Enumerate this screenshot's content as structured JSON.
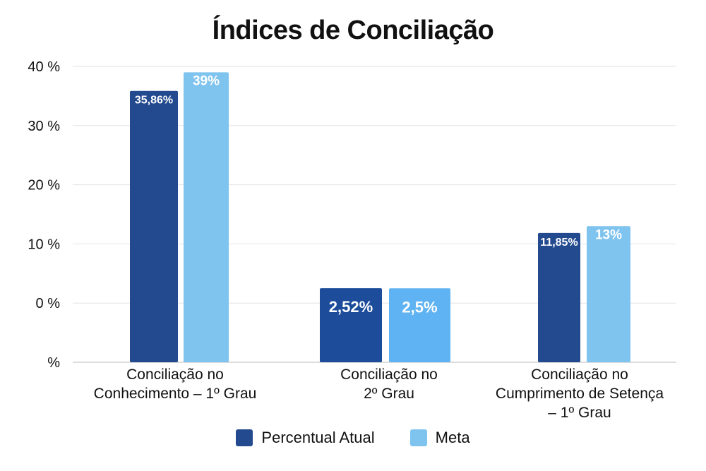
{
  "chart_data": {
    "type": "bar",
    "title": "Índices de Conciliação",
    "categories": [
      [
        "Conciliação no",
        "Conhecimento – 1º Grau"
      ],
      [
        "Conciliação no",
        "2º Grau"
      ],
      [
        "Conciliação no",
        "Cumprimento de Setença",
        "– 1º Grau"
      ]
    ],
    "series": [
      {
        "name": "Percentual Atual",
        "color": "#234a8f",
        "values": [
          35.86,
          2.52,
          11.85
        ],
        "labels": [
          "35,86%",
          "2,52%",
          "11,85%"
        ]
      },
      {
        "name": "Meta",
        "color": "#7fc4ef",
        "values": [
          39,
          2.5,
          13
        ],
        "labels": [
          "39%",
          "2,5%",
          "13%"
        ]
      }
    ],
    "group_colors_override": {
      "1": [
        "#1c4c9a",
        "#5fb3f2"
      ]
    },
    "y_ticks": [
      {
        "value": 40,
        "label": "40 %"
      },
      {
        "value": 30,
        "label": "30 %"
      },
      {
        "value": 20,
        "label": "20 %"
      },
      {
        "value": 10,
        "label": "10 %"
      },
      {
        "value": 0,
        "label": "0 %"
      },
      {
        "value": -10,
        "label": "%"
      }
    ],
    "ylim": [
      -10,
      40
    ],
    "grid": true,
    "legend": "bottom"
  }
}
